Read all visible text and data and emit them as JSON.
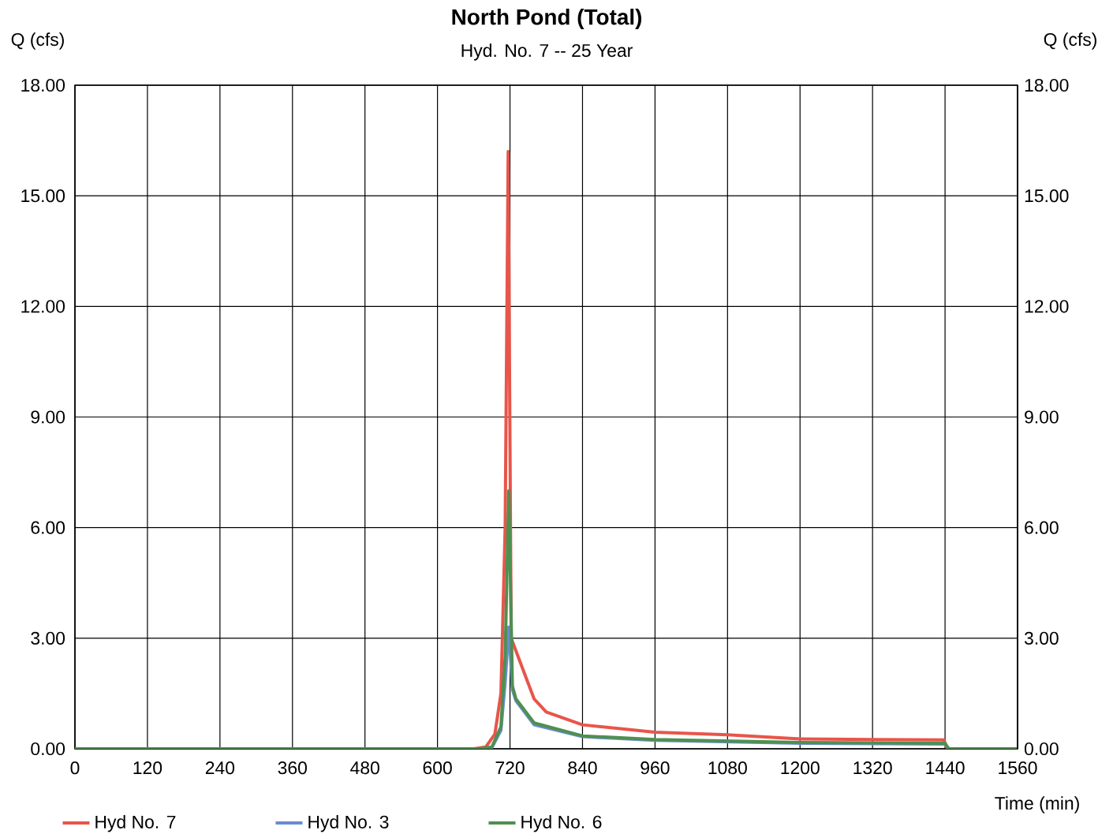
{
  "chart_data": {
    "type": "line",
    "title": "North Pond (Total)",
    "subtitle": "Hyd. No. 7 -- 25 Year",
    "xlabel": "Time (min)",
    "ylabel": "Q (cfs)",
    "y2label": "Q (cfs)",
    "xlim": [
      0,
      1560
    ],
    "xticks": [
      0,
      120,
      240,
      360,
      480,
      600,
      720,
      840,
      960,
      1080,
      1200,
      1320,
      1440,
      1560
    ],
    "ylim": [
      0,
      18
    ],
    "yticks": [
      {
        "value": 0,
        "label": "0.00"
      },
      {
        "value": 3,
        "label": "3.00"
      },
      {
        "value": 6,
        "label": "6.00"
      },
      {
        "value": 9,
        "label": "9.00"
      },
      {
        "value": 12,
        "label": "12.00"
      },
      {
        "value": 15,
        "label": "15.00"
      },
      {
        "value": 18,
        "label": "18.00"
      }
    ],
    "y2lim": [
      0,
      18
    ],
    "y2ticks": [
      {
        "value": 0,
        "label": "0.00"
      },
      {
        "value": 3,
        "label": "3.00"
      },
      {
        "value": 6,
        "label": "6.00"
      },
      {
        "value": 9,
        "label": "9.00"
      },
      {
        "value": 12,
        "label": "12.00"
      },
      {
        "value": 15,
        "label": "15.00"
      },
      {
        "value": 18,
        "label": "18.00"
      }
    ],
    "grid": true,
    "legend": "bottom left",
    "marker": "none",
    "line_style": "solid",
    "series": [
      {
        "name": "Hyd No. 7",
        "color": "#e8554a",
        "x": [
          0,
          660,
          680,
          695,
          705,
          712,
          717,
          722,
          730,
          760,
          780,
          840,
          960,
          1080,
          1200,
          1320,
          1438,
          1444,
          1560
        ],
        "values": [
          0,
          0,
          0.05,
          0.4,
          1.5,
          6.0,
          16.2,
          3.0,
          2.65,
          1.35,
          1.0,
          0.65,
          0.45,
          0.38,
          0.27,
          0.25,
          0.24,
          0,
          0
        ]
      },
      {
        "name": "Hyd No. 3",
        "color": "#6a8ccf",
        "x": [
          0,
          670,
          690,
          705,
          712,
          718,
          724,
          730,
          760,
          840,
          960,
          1200,
          1440,
          1446,
          1560
        ],
        "values": [
          0,
          0,
          0.03,
          0.5,
          1.8,
          3.3,
          1.6,
          1.3,
          0.65,
          0.33,
          0.23,
          0.15,
          0.13,
          0,
          0
        ]
      },
      {
        "name": "Hyd No. 6",
        "color": "#4f8f50",
        "x": [
          0,
          670,
          690,
          705,
          712,
          718,
          724,
          730,
          760,
          840,
          960,
          1200,
          1440,
          1446,
          1560
        ],
        "values": [
          0,
          0,
          0.05,
          0.6,
          2.5,
          7.0,
          1.7,
          1.35,
          0.7,
          0.35,
          0.25,
          0.17,
          0.15,
          0,
          0
        ]
      }
    ]
  }
}
